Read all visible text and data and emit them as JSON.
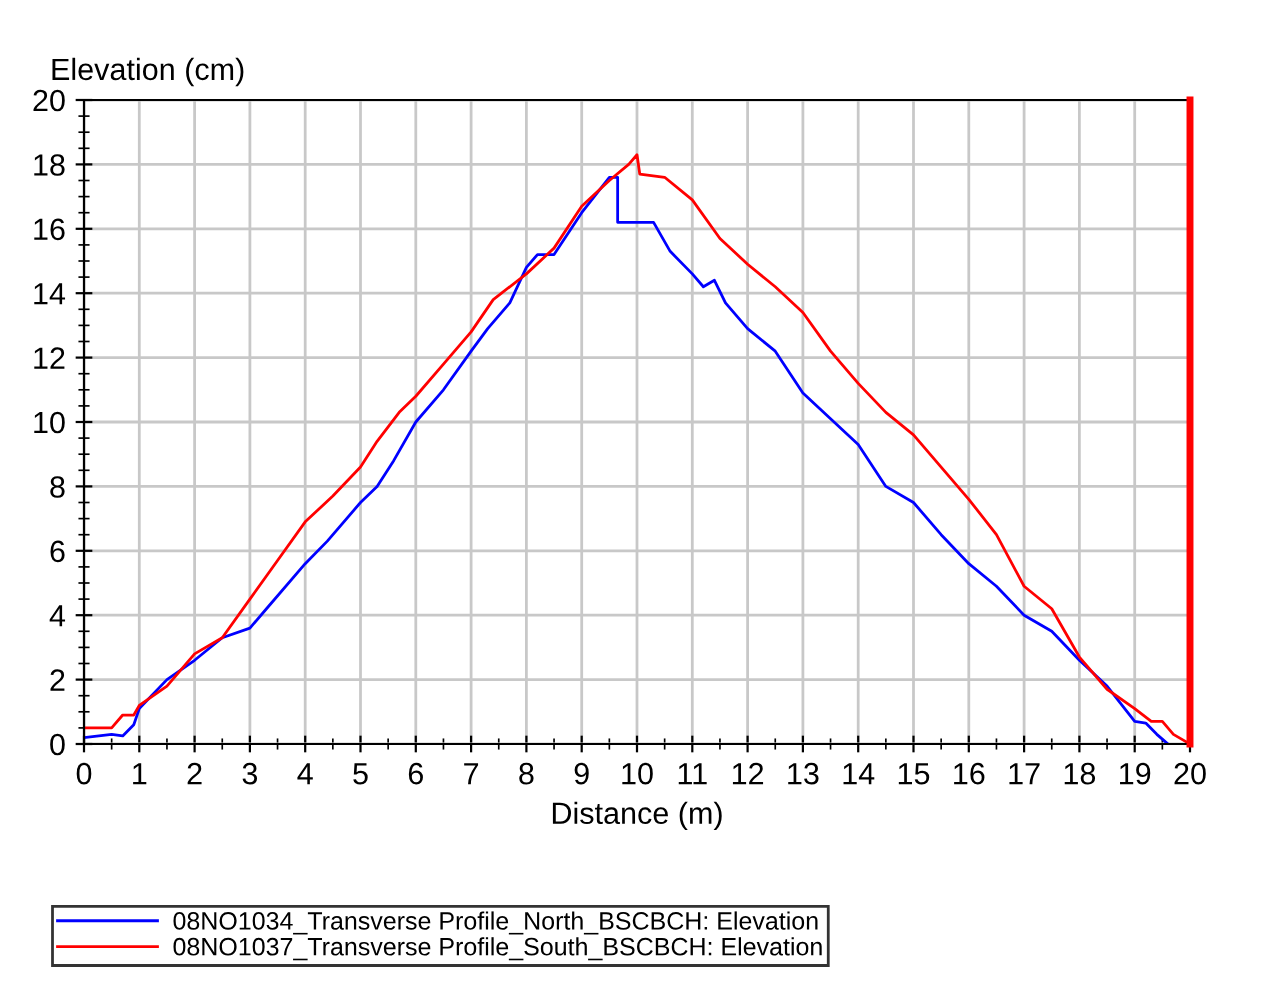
{
  "chart_data": {
    "type": "line",
    "xlabel": "Distance (m)",
    "ylabel": "Elevation (cm)",
    "xlim": [
      0,
      20
    ],
    "ylim": [
      0,
      20
    ],
    "xticks": [
      0,
      1,
      2,
      3,
      4,
      5,
      6,
      7,
      8,
      9,
      10,
      11,
      12,
      13,
      14,
      15,
      16,
      17,
      18,
      19,
      20
    ],
    "yticks": [
      0,
      2,
      4,
      6,
      8,
      10,
      12,
      14,
      16,
      18,
      20
    ],
    "grid": true,
    "legend": "bottom left",
    "marker": "none",
    "line_style": "solid",
    "ref_lines": [
      {
        "axis": "x",
        "value": 20,
        "color": "#ff0000"
      }
    ],
    "series": [
      {
        "name": "08NO1034_Transverse Profile_North_BSCBCH: Elevation",
        "color": "#0000ff",
        "x": [
          0,
          0.5,
          0.7,
          0.9,
          1.0,
          1.5,
          2,
          2.5,
          3,
          3.3,
          4,
          4.4,
          5,
          5.3,
          5.6,
          6,
          6.5,
          7,
          7.3,
          7.7,
          8,
          8.2,
          8.5,
          9,
          9.5,
          9.65,
          9.65,
          10,
          10.3,
          10.6,
          11,
          11.2,
          11.4,
          11.6,
          12,
          12.5,
          13,
          13.5,
          14,
          14.5,
          15,
          15.5,
          16,
          16.5,
          17,
          17.5,
          18,
          18.5,
          19,
          19.2,
          19.4,
          19.6
        ],
        "values": [
          0.2,
          0.3,
          0.25,
          0.6,
          1.1,
          2.0,
          2.6,
          3.3,
          3.6,
          4.2,
          5.6,
          6.3,
          7.5,
          8.0,
          8.8,
          10.0,
          11.0,
          12.2,
          12.9,
          13.7,
          14.8,
          15.2,
          15.2,
          16.5,
          17.6,
          17.6,
          16.2,
          16.2,
          16.2,
          15.3,
          14.6,
          14.2,
          14.4,
          13.7,
          12.9,
          12.2,
          10.9,
          10.1,
          9.3,
          8.0,
          7.5,
          6.5,
          5.6,
          4.9,
          4.0,
          3.5,
          2.6,
          1.8,
          0.7,
          0.65,
          0.3,
          0.0
        ]
      },
      {
        "name": "08NO1037_Transverse Profile_South_BSCBCH: Elevation",
        "color": "#ff0000",
        "x": [
          0,
          0.5,
          0.7,
          0.9,
          1.0,
          1.5,
          2,
          2.5,
          3,
          3.5,
          4,
          4.5,
          5,
          5.3,
          5.7,
          6,
          6.5,
          7,
          7.4,
          8,
          8.5,
          9,
          9.5,
          9.85,
          10,
          10.05,
          10.5,
          11,
          11.5,
          12,
          12.5,
          13,
          13.5,
          14,
          14.5,
          15,
          15.5,
          16,
          16.5,
          17,
          17.5,
          18,
          18.5,
          19,
          19.3,
          19.5,
          19.7,
          20
        ],
        "values": [
          0.5,
          0.5,
          0.9,
          0.9,
          1.2,
          1.8,
          2.8,
          3.3,
          4.5,
          5.7,
          6.9,
          7.7,
          8.6,
          9.4,
          10.3,
          10.8,
          11.8,
          12.8,
          13.8,
          14.6,
          15.4,
          16.7,
          17.5,
          18.0,
          18.3,
          17.7,
          17.6,
          16.9,
          15.7,
          14.9,
          14.2,
          13.4,
          12.2,
          11.2,
          10.3,
          9.6,
          8.6,
          7.6,
          6.5,
          4.9,
          4.2,
          2.7,
          1.7,
          1.1,
          0.7,
          0.7,
          0.3,
          0.0
        ]
      }
    ]
  }
}
